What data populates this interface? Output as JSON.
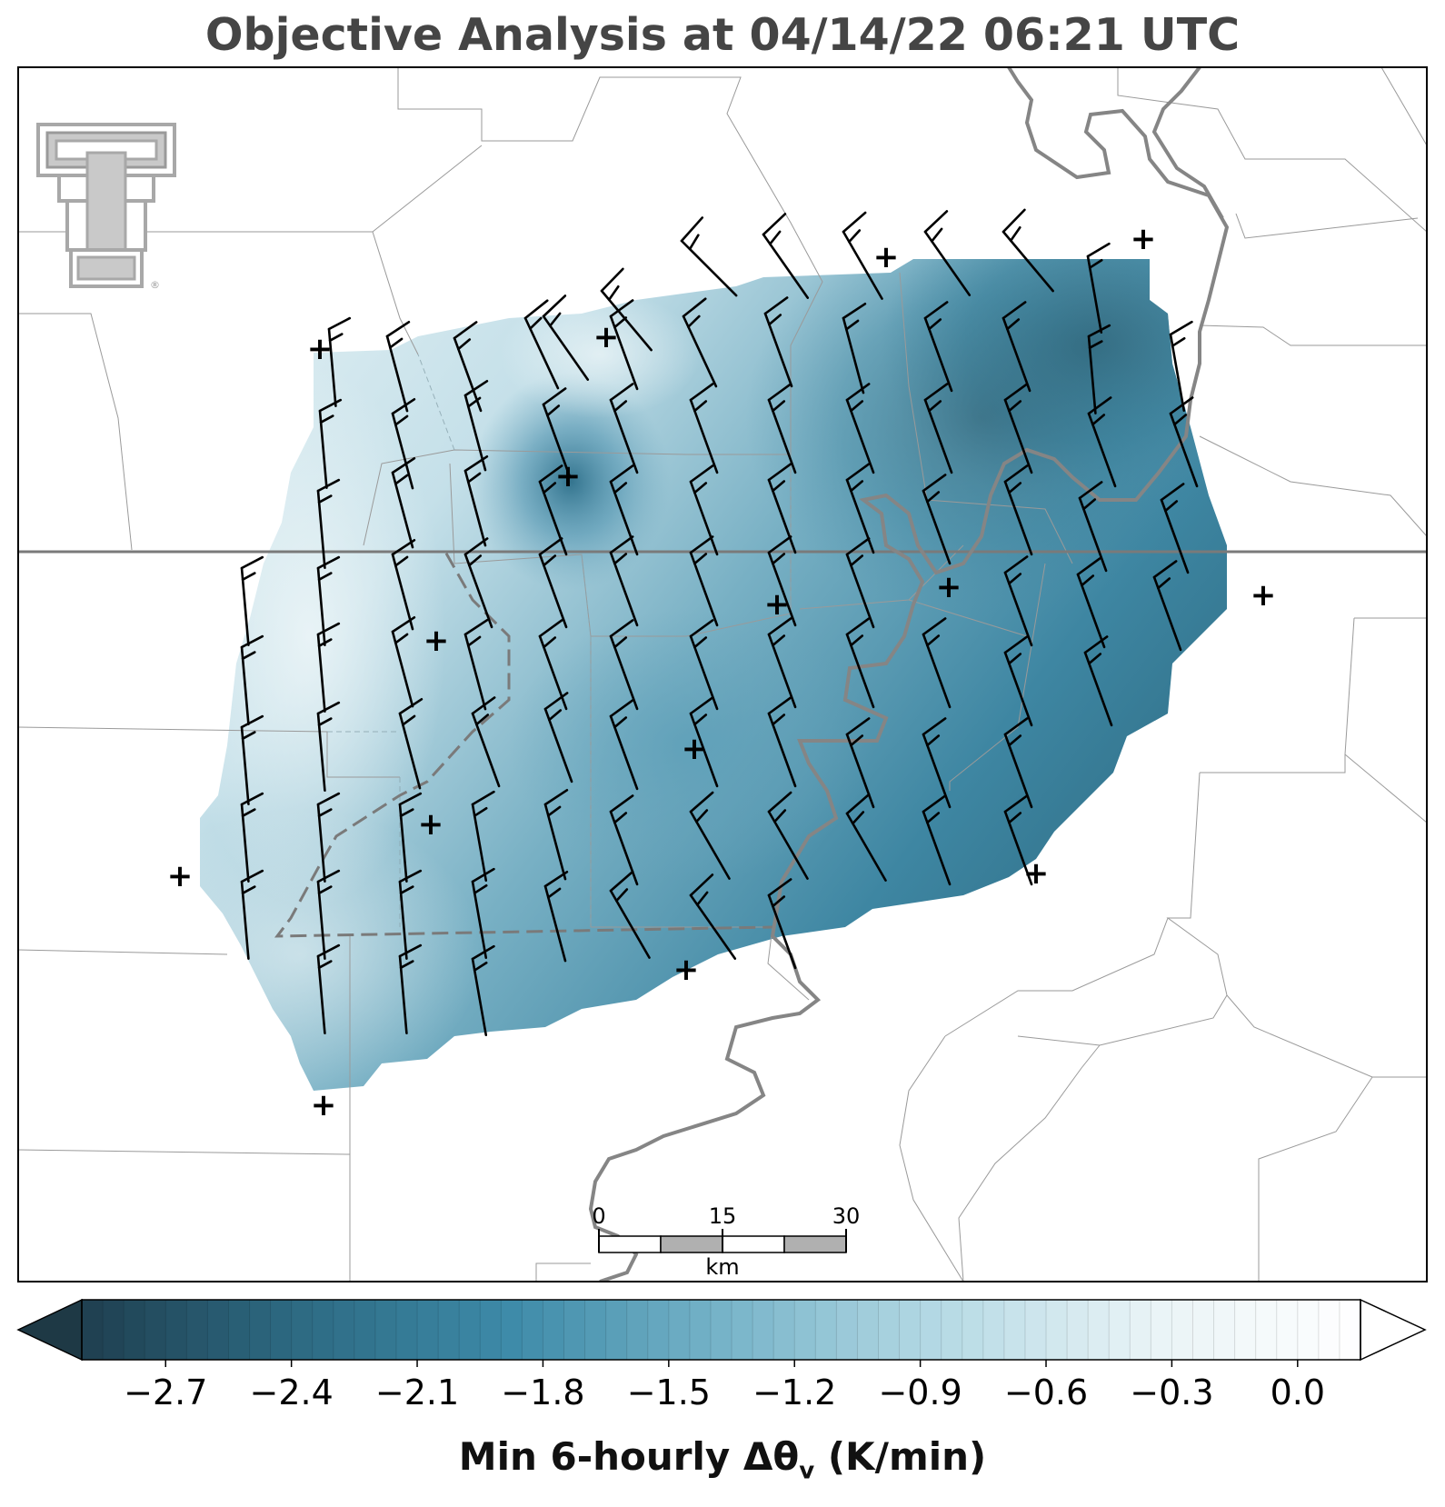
{
  "title": "Objective Analysis at 04/14/22 06:21 UTC",
  "logo": {
    "name": "Texas Tech Double T logo",
    "mark": "®"
  },
  "colormap": [
    "#1f3f4f",
    "#2d6a82",
    "#3d8aa8",
    "#76b3c8",
    "#b4d9e4",
    "#e8f3f6",
    "#ffffff"
  ],
  "colorbar": {
    "label_main": "Min 6-hourly Δθ",
    "label_sub": "v",
    "label_units": " (K/min)",
    "min": -2.9,
    "max": 0.15,
    "ticks": [
      "−2.7",
      "−2.4",
      "−2.1",
      "−1.8",
      "−1.5",
      "−1.2",
      "−0.9",
      "−0.6",
      "−0.3",
      "0.0"
    ],
    "tick_values": [
      -2.7,
      -2.4,
      -2.1,
      -1.8,
      -1.5,
      -1.2,
      -0.9,
      -0.6,
      -0.3,
      0.0
    ],
    "extend": "both"
  },
  "scalebar": {
    "ticks": [
      "0",
      "15",
      "30"
    ],
    "unit": "km"
  },
  "legend": {
    "station_marker": "+",
    "wind_symbol": "wind barb"
  }
}
